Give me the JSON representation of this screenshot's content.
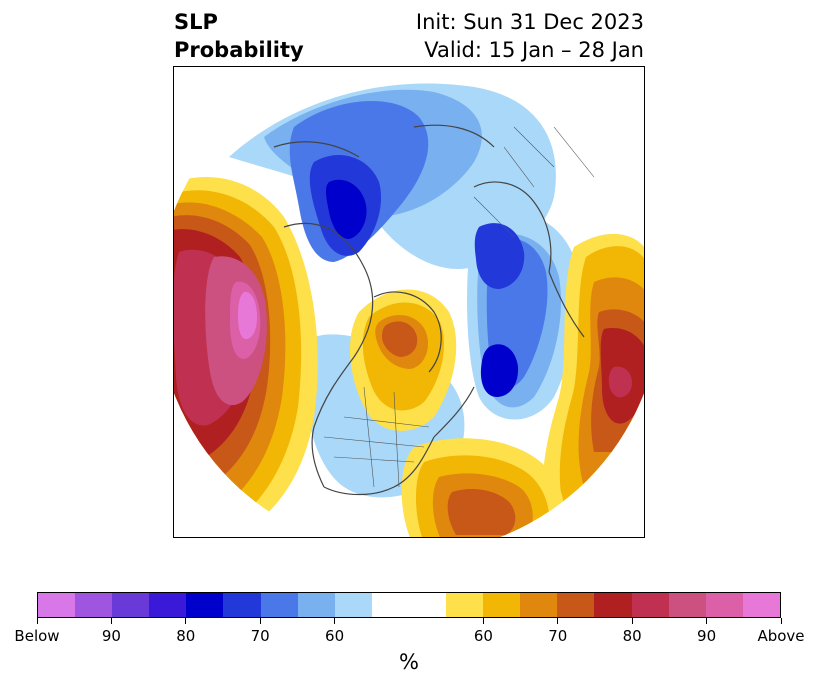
{
  "title": {
    "left_line1": "SLP",
    "left_line2": "Probability",
    "right_line1": "Init: Sun 31 Dec 2023",
    "right_line2": "Valid: 15 Jan – 28 Jan"
  },
  "colorbar": {
    "colors": [
      "#d878e8",
      "#a055e0",
      "#6a3ad8",
      "#3a1ad8",
      "#0000cc",
      "#2238d8",
      "#4a78e8",
      "#78b0f0",
      "#aad8f8",
      "#ffffff",
      "#ffffff",
      "#fde04a",
      "#f2b705",
      "#e0880e",
      "#c85818",
      "#b02020",
      "#c03050",
      "#cc5080",
      "#dc60a8",
      "#e878d8"
    ],
    "tick_labels": [
      "Below",
      "90",
      "80",
      "70",
      "60",
      "60",
      "70",
      "80",
      "90",
      "Above"
    ],
    "unit": "%"
  },
  "map": {
    "projection": "north-polar-stereographic",
    "variable": "SLP probability",
    "anomaly_regions": [
      {
        "name": "north-pacific-above",
        "category": "above",
        "peak_percent": 95
      },
      {
        "name": "canada-arctic-below",
        "category": "below",
        "peak_percent": 80
      },
      {
        "name": "scandinavia-barents-below",
        "category": "below",
        "peak_percent": 80
      },
      {
        "name": "north-atlantic-below",
        "category": "below",
        "peak_percent": 80
      },
      {
        "name": "greenland-above",
        "category": "above",
        "peak_percent": 70
      },
      {
        "name": "siberia-above",
        "category": "above",
        "peak_percent": 80
      },
      {
        "name": "western-atlantic-above",
        "category": "above",
        "peak_percent": 70
      },
      {
        "name": "central-us-below",
        "category": "below",
        "peak_percent": 60
      }
    ]
  }
}
